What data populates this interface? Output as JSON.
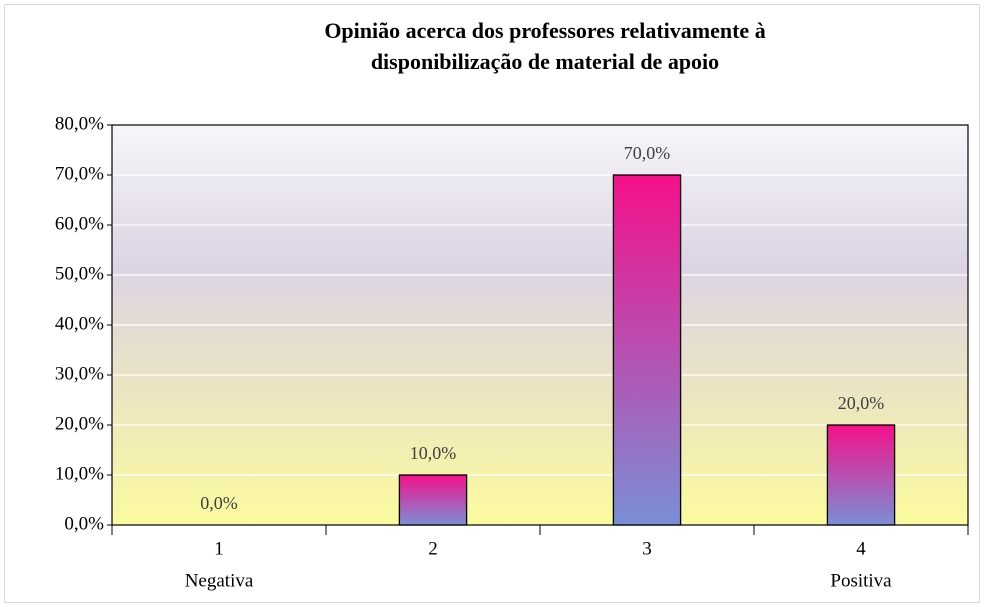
{
  "chart_data": {
    "type": "bar",
    "title": [
      "Opinião acerca dos professores relativamente à",
      "disponibilização de material de apoio"
    ],
    "categories": [
      "1",
      "2",
      "3",
      "4"
    ],
    "x_notes": [
      {
        "text": "Negativa",
        "at": "1"
      },
      {
        "text": "Positiva",
        "at": "4"
      }
    ],
    "values": [
      0,
      10,
      70,
      20
    ],
    "value_labels": [
      "0,0%",
      "10,0%",
      "70,0%",
      "20,0%"
    ],
    "color": [
      "#f5108a",
      "#7a8fd6"
    ],
    "ylim": [
      0,
      80
    ],
    "yticks": [
      {
        "value": 0,
        "label": "0,0%"
      },
      {
        "value": 10,
        "label": "10,0%"
      },
      {
        "value": 20,
        "label": "20,0%"
      },
      {
        "value": 30,
        "label": "30,0%"
      },
      {
        "value": 40,
        "label": "40,0%"
      },
      {
        "value": 50,
        "label": "50,0%"
      },
      {
        "value": 60,
        "label": "60,0%"
      },
      {
        "value": 70,
        "label": "70,0%"
      },
      {
        "value": 80,
        "label": "80,0%"
      }
    ],
    "grid": true
  }
}
